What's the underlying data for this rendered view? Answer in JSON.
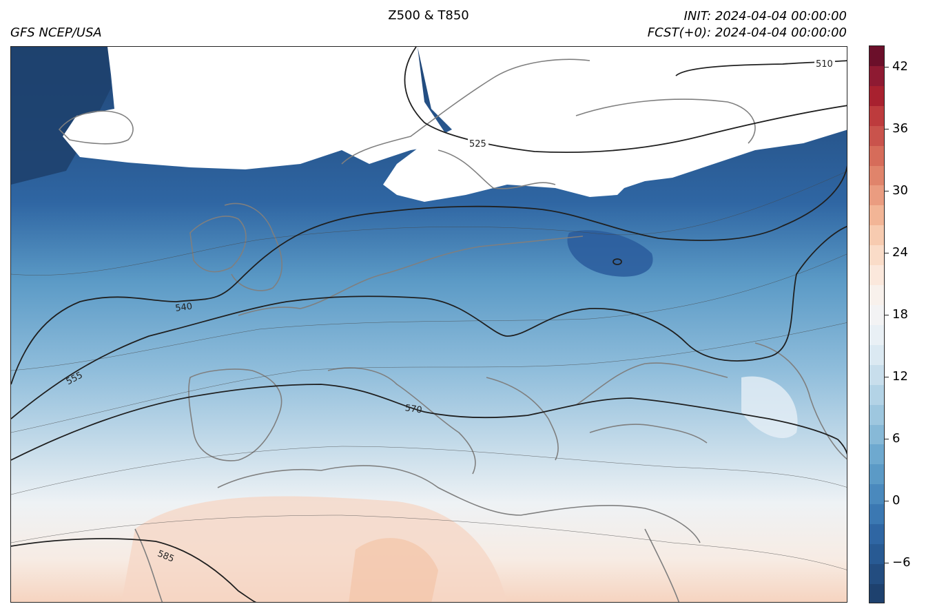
{
  "header": {
    "title": "Z500 & T850",
    "source": "GFS NCEP/USA",
    "init": "INIT: 2024-04-04 00:00:00",
    "forecast": "FCST(+0): 2024-04-04 00:00:00"
  },
  "colorbar": {
    "ticks": [
      "42",
      "36",
      "30",
      "24",
      "18",
      "12",
      "6",
      "0",
      "−6"
    ],
    "colors_top_to_bottom": [
      "#6b0f2a",
      "#8e1a32",
      "#a8212f",
      "#bd3b3d",
      "#c9534c",
      "#d66c5a",
      "#e0846b",
      "#ea9c80",
      "#f2b596",
      "#f7cbb0",
      "#fadcc8",
      "#fbe8dc",
      "#f8f1ec",
      "#f3f3f4",
      "#e9f0f5",
      "#dbe9f2",
      "#c8deec",
      "#b3d3e6",
      "#9ec7df",
      "#87b9d7",
      "#6ea9cf",
      "#5b9ac6",
      "#4a89bd",
      "#3b78b2",
      "#2f66a3",
      "#285a93",
      "#234d80",
      "#1e416e"
    ]
  },
  "map": {
    "contour_labels": [
      "510",
      "525",
      "540",
      "555",
      "570",
      "585"
    ]
  }
}
